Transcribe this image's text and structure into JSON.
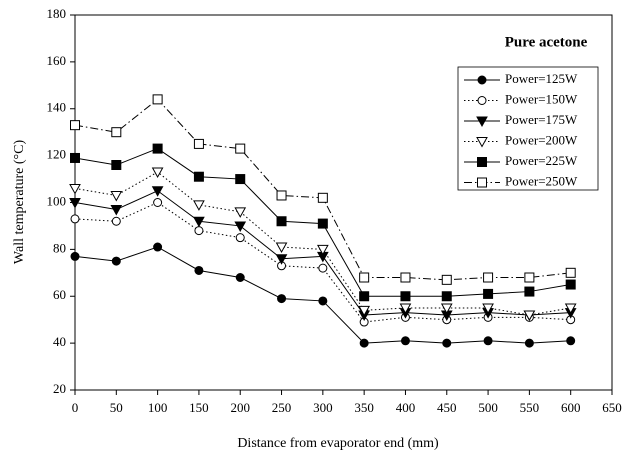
{
  "chart_data": {
    "type": "line",
    "xlabel": "Distance from evaporator end (mm)",
    "ylabel": "Wall temperature (°C)",
    "legend_title": "Pure acetone",
    "legend": "upper right",
    "x": [
      0,
      50,
      100,
      150,
      200,
      250,
      300,
      350,
      400,
      450,
      500,
      550,
      600
    ],
    "xlim": [
      0,
      650
    ],
    "xticks": [
      0,
      50,
      100,
      150,
      200,
      250,
      300,
      350,
      400,
      450,
      500,
      550,
      600,
      650
    ],
    "ylim": [
      20,
      180
    ],
    "yticks": [
      20,
      40,
      60,
      80,
      100,
      120,
      140,
      160,
      180
    ],
    "series": [
      {
        "name": "Power=125W",
        "color": "#000000",
        "marker": "circle-filled",
        "dash": "solid",
        "values": [
          77,
          75,
          81,
          71,
          68,
          59,
          58,
          40,
          41,
          40,
          41,
          40,
          41
        ]
      },
      {
        "name": "Power=150W",
        "color": "#000000",
        "marker": "circle-open",
        "dash": "dotted",
        "values": [
          93,
          92,
          100,
          88,
          85,
          73,
          72,
          49,
          51,
          50,
          51,
          51,
          50
        ]
      },
      {
        "name": "Power=175W",
        "color": "#000000",
        "marker": "triangle-down-filled",
        "dash": "solid",
        "values": [
          100,
          97,
          105,
          92,
          90,
          76,
          77,
          52,
          53,
          52,
          53,
          52,
          53
        ]
      },
      {
        "name": "Power=200W",
        "color": "#000000",
        "marker": "triangle-down-open",
        "dash": "dotted",
        "values": [
          106,
          103,
          113,
          99,
          96,
          81,
          80,
          54,
          55,
          55,
          55,
          52,
          55
        ]
      },
      {
        "name": "Power=225W",
        "color": "#000000",
        "marker": "square-filled",
        "dash": "solid",
        "values": [
          119,
          116,
          123,
          111,
          110,
          92,
          91,
          60,
          60,
          60,
          61,
          62,
          65
        ]
      },
      {
        "name": "Power=250W",
        "color": "#000000",
        "marker": "square-open",
        "dash": "dashdot",
        "values": [
          133,
          130,
          144,
          125,
          123,
          103,
          102,
          68,
          68,
          67,
          68,
          68,
          70
        ]
      }
    ]
  }
}
